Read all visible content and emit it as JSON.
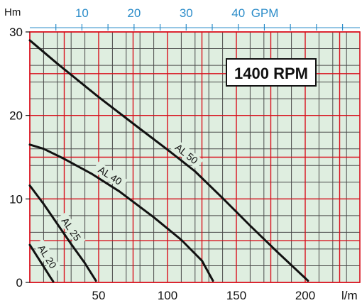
{
  "chart_data": {
    "type": "line",
    "title": "",
    "badge": "1400 RPM",
    "xlabel": "l/m",
    "ylabel": "Hm",
    "top_axis_label": "GPM",
    "xlim": [
      0,
      225
    ],
    "ylim": [
      0,
      30
    ],
    "x_ticks": [
      "50",
      "100",
      "150",
      "200"
    ],
    "x_tick_values": [
      50,
      100,
      150,
      200
    ],
    "y_ticks": [
      "0",
      "10",
      "20",
      "30"
    ],
    "y_tick_values": [
      0,
      10,
      20,
      30
    ],
    "top_ticks": [
      "10",
      "20",
      "30",
      "40"
    ],
    "top_tick_values": [
      10,
      20,
      30,
      40
    ],
    "grid": true,
    "series": [
      {
        "name": "AL 50",
        "points": [
          [
            0,
            29.0
          ],
          [
            20,
            26.2
          ],
          [
            50,
            22.2
          ],
          [
            80,
            18.4
          ],
          [
            100,
            15.9
          ],
          [
            120,
            13.3
          ],
          [
            140,
            10.1
          ],
          [
            160,
            6.8
          ],
          [
            180,
            3.6
          ],
          [
            202,
            0.2
          ]
        ]
      },
      {
        "name": "AL 40",
        "points": [
          [
            0,
            16.5
          ],
          [
            10,
            16.0
          ],
          [
            25,
            14.8
          ],
          [
            45,
            13.0
          ],
          [
            65,
            10.9
          ],
          [
            90,
            7.8
          ],
          [
            110,
            5.1
          ],
          [
            125,
            2.6
          ],
          [
            133,
            0.2
          ]
        ]
      },
      {
        "name": "AL 25",
        "points": [
          [
            0,
            11.6
          ],
          [
            10,
            9.4
          ],
          [
            20,
            7.0
          ],
          [
            30,
            4.6
          ],
          [
            40,
            2.3
          ],
          [
            48,
            0.2
          ]
        ]
      },
      {
        "name": "AL 20",
        "points": [
          [
            0,
            4.5
          ],
          [
            5,
            3.2
          ],
          [
            10,
            1.9
          ],
          [
            15,
            0.6
          ],
          [
            17,
            0.1
          ]
        ]
      }
    ],
    "colors": {
      "plot_bg": "#dfeee0",
      "minor_grid": "#4a4a4a",
      "major_grid": "#d9101d",
      "top_axis_text": "#2b8cc9",
      "curve": "#111111",
      "text": "#111111"
    }
  }
}
